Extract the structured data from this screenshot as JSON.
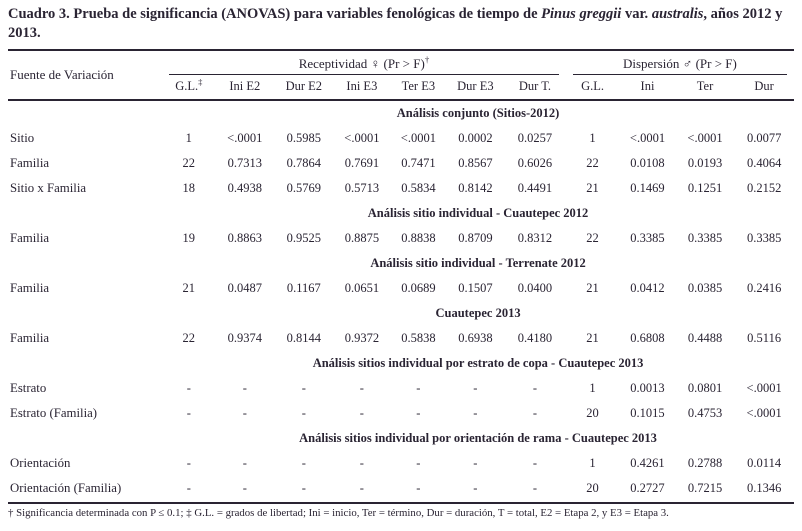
{
  "title": {
    "prefix": "Cuadro 3. Prueba de significancia (ANOVAS) para variables fenológicas de tiempo de ",
    "species": "Pinus greggii",
    "mid": " var. ",
    "variety": "australis",
    "suffix": ", años 2012 y 2013."
  },
  "table": {
    "row_header": "Fuente de Variación",
    "groups": [
      {
        "label": "Receptividad ♀ (Pr > F)",
        "sup": "†"
      },
      {
        "label": "Dispersión ♂ (Pr > F)",
        "sup": ""
      }
    ],
    "sub_headers": [
      {
        "label": "G.L.",
        "sup": "‡"
      },
      {
        "label": "Ini E2"
      },
      {
        "label": "Dur E2"
      },
      {
        "label": "Ini E3"
      },
      {
        "label": "Ter E3"
      },
      {
        "label": "Dur E3"
      },
      {
        "label": "Dur T."
      },
      {
        "label": "G.L."
      },
      {
        "label": "Ini"
      },
      {
        "label": "Ter"
      },
      {
        "label": "Dur"
      }
    ],
    "sections": [
      {
        "title": "Análisis conjunto (Sitios-2012)",
        "rows": [
          {
            "label": "Sitio",
            "values": [
              "1",
              "<.0001",
              "0.5985",
              "<.0001",
              "<.0001",
              "0.0002",
              "0.0257",
              "1",
              "<.0001",
              "<.0001",
              "0.0077"
            ]
          },
          {
            "label": "Familia",
            "values": [
              "22",
              "0.7313",
              "0.7864",
              "0.7691",
              "0.7471",
              "0.8567",
              "0.6026",
              "22",
              "0.0108",
              "0.0193",
              "0.4064"
            ]
          },
          {
            "label": "Sitio x Familia",
            "values": [
              "18",
              "0.4938",
              "0.5769",
              "0.5713",
              "0.5834",
              "0.8142",
              "0.4491",
              "21",
              "0.1469",
              "0.1251",
              "0.2152"
            ]
          }
        ]
      },
      {
        "title": "Análisis sitio individual - Cuautepec 2012",
        "rows": [
          {
            "label": "Familia",
            "values": [
              "19",
              "0.8863",
              "0.9525",
              "0.8875",
              "0.8838",
              "0.8709",
              "0.8312",
              "22",
              "0.3385",
              "0.3385",
              "0.3385"
            ]
          }
        ]
      },
      {
        "title": "Análisis sitio individual - Terrenate 2012",
        "rows": [
          {
            "label": "Familia",
            "values": [
              "21",
              "0.0487",
              "0.1167",
              "0.0651",
              "0.0689",
              "0.1507",
              "0.0400",
              "21",
              "0.0412",
              "0.0385",
              "0.2416"
            ]
          }
        ]
      },
      {
        "title": "Cuautepec 2013",
        "rows": [
          {
            "label": "Familia",
            "values": [
              "22",
              "0.9374",
              "0.8144",
              "0.9372",
              "0.5838",
              "0.6938",
              "0.4180",
              "21",
              "0.6808",
              "0.4488",
              "0.5116"
            ]
          }
        ]
      },
      {
        "title": "Análisis sitios individual por estrato de copa - Cuautepec 2013",
        "rows": [
          {
            "label": "Estrato",
            "values": [
              "-",
              "-",
              "-",
              "-",
              "-",
              "-",
              "-",
              "1",
              "0.0013",
              "0.0801",
              "<.0001"
            ]
          },
          {
            "label": "Estrato (Familia)",
            "values": [
              "-",
              "-",
              "-",
              "-",
              "-",
              "-",
              "-",
              "20",
              "0.1015",
              "0.4753",
              "<.0001"
            ]
          }
        ]
      },
      {
        "title": "Análisis sitios individual por orientación de rama - Cuautepec 2013",
        "rows": [
          {
            "label": "Orientación",
            "values": [
              "-",
              "-",
              "-",
              "-",
              "-",
              "-",
              "-",
              "1",
              "0.4261",
              "0.2788",
              "0.0114"
            ]
          },
          {
            "label": "Orientación (Familia)",
            "values": [
              "-",
              "-",
              "-",
              "-",
              "-",
              "-",
              "-",
              "20",
              "0.2727",
              "0.7215",
              "0.1346"
            ]
          }
        ]
      }
    ]
  },
  "footnote": "† Significancia determinada con P ≤ 0.1; ‡ G.L. = grados de libertad; Ini = inicio, Ter = término, Dur = duración, T = total, E2 = Etapa 2, y E3 = Etapa 3.",
  "colors": {
    "text": "#2a2433",
    "rule": "#2a2433",
    "background": "#ffffff"
  }
}
